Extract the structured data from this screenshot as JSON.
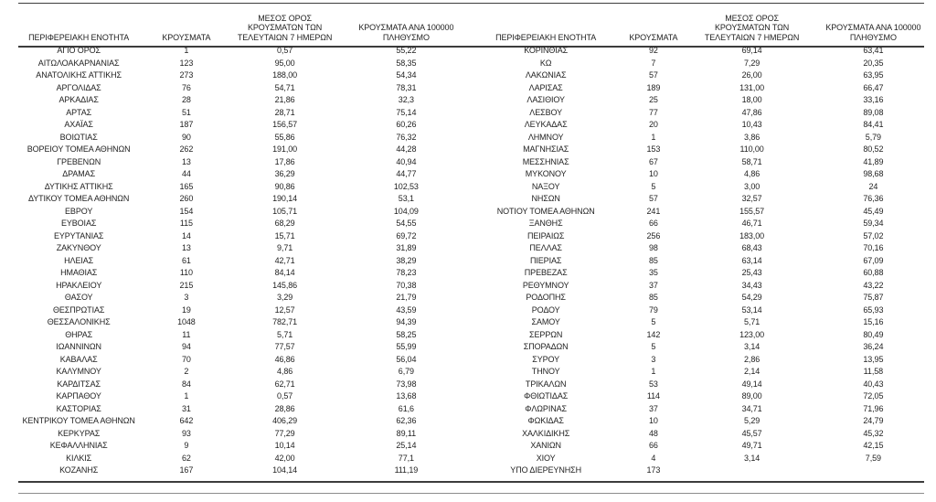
{
  "report": {
    "title": "",
    "colors": {
      "background": "#ffffff",
      "text": "#1f1f1f",
      "rule_dark": "#3c3c3c",
      "rule_light": "#8c8c8c"
    },
    "columns": [
      {
        "id": "region",
        "label": "ΠΕΡΙΦΕΡΕΙΑΚΗ ΕΝΟΤΗΤΑ",
        "lines": [
          "ΠΕΡΙΦΕΡΕΙΑΚΗ ΕΝΟΤΗΤΑ"
        ]
      },
      {
        "id": "cases",
        "label": "ΚΡΟΥΣΜΑΤΑ",
        "lines": [
          "ΚΡΟΥΣΜΑΤΑ"
        ]
      },
      {
        "id": "avg7",
        "label": "ΜΕΣΟΣ ΟΡΟΣ ΚΡΟΥΣΜΑΤΩΝ ΤΩΝ ΤΕΛΕΥΤΑΙΩΝ 7 ΗΜΕΡΩΝ",
        "lines": [
          "ΜΕΣΟΣ ΟΡΟΣ",
          "ΚΡΟΥΣΜΑΤΩΝ ΤΩΝ",
          "ΤΕΛΕΥΤΑΙΩΝ 7 ΗΜΕΡΩΝ"
        ]
      },
      {
        "id": "per100k",
        "label": "ΚΡΟΥΣΜΑΤΑ ΑΝΑ 100000 ΠΛΗΘΥΣΜΟ",
        "lines": [
          "ΚΡΟΥΣΜΑΤΑ ΑΝΑ 100000",
          "ΠΛΗΘΥΣΜΟ"
        ]
      }
    ],
    "left_table": {
      "rows": [
        [
          "ΑΓΙΟ ΟΡΟΣ",
          "1",
          "0,57",
          "55,22"
        ],
        [
          "ΑΙΤΩΛΟΑΚΑΡΝΑΝΙΑΣ",
          "123",
          "95,00",
          "58,35"
        ],
        [
          "ΑΝΑΤΟΛΙΚΗΣ ΑΤΤΙΚΗΣ",
          "273",
          "188,00",
          "54,34"
        ],
        [
          "ΑΡΓΟΛΙΔΑΣ",
          "76",
          "54,71",
          "78,31"
        ],
        [
          "ΑΡΚΑΔΙΑΣ",
          "28",
          "21,86",
          "32,3"
        ],
        [
          "ΑΡΤΑΣ",
          "51",
          "28,71",
          "75,14"
        ],
        [
          "ΑΧΑΪΑΣ",
          "187",
          "156,57",
          "60,26"
        ],
        [
          "ΒΟΙΩΤΙΑΣ",
          "90",
          "55,86",
          "76,32"
        ],
        [
          "ΒΟΡΕΙΟΥ ΤΟΜΕΑ ΑΘΗΝΩΝ",
          "262",
          "191,00",
          "44,28"
        ],
        [
          "ΓΡΕΒΕΝΩΝ",
          "13",
          "17,86",
          "40,94"
        ],
        [
          "ΔΡΑΜΑΣ",
          "44",
          "36,29",
          "44,77"
        ],
        [
          "ΔΥΤΙΚΗΣ ΑΤΤΙΚΗΣ",
          "165",
          "90,86",
          "102,53"
        ],
        [
          "ΔΥΤΙΚΟΥ ΤΟΜΕΑ ΑΘΗΝΩΝ",
          "260",
          "190,14",
          "53,1"
        ],
        [
          "ΕΒΡΟΥ",
          "154",
          "105,71",
          "104,09"
        ],
        [
          "ΕΥΒΟΙΑΣ",
          "115",
          "68,29",
          "54,55"
        ],
        [
          "ΕΥΡΥΤΑΝΙΑΣ",
          "14",
          "15,71",
          "69,72"
        ],
        [
          "ΖΑΚΥΝΘΟΥ",
          "13",
          "9,71",
          "31,89"
        ],
        [
          "ΗΛΕΙΑΣ",
          "61",
          "42,71",
          "38,29"
        ],
        [
          "ΗΜΑΘΙΑΣ",
          "110",
          "84,14",
          "78,23"
        ],
        [
          "ΗΡΑΚΛΕΙΟΥ",
          "215",
          "145,86",
          "70,38"
        ],
        [
          "ΘΑΣΟΥ",
          "3",
          "3,29",
          "21,79"
        ],
        [
          "ΘΕΣΠΡΩΤΙΑΣ",
          "19",
          "12,57",
          "43,59"
        ],
        [
          "ΘΕΣΣΑΛΟΝΙΚΗΣ",
          "1048",
          "782,71",
          "94,39"
        ],
        [
          "ΘΗΡΑΣ",
          "11",
          "5,71",
          "58,25"
        ],
        [
          "ΙΩΑΝΝΙΝΩΝ",
          "94",
          "77,57",
          "55,99"
        ],
        [
          "ΚΑΒΑΛΑΣ",
          "70",
          "46,86",
          "56,04"
        ],
        [
          "ΚΑΛΥΜΝΟΥ",
          "2",
          "4,86",
          "6,79"
        ],
        [
          "ΚΑΡΔΙΤΣΑΣ",
          "84",
          "62,71",
          "73,98"
        ],
        [
          "ΚΑΡΠΑΘΟΥ",
          "1",
          "0,57",
          "13,68"
        ],
        [
          "ΚΑΣΤΟΡΙΑΣ",
          "31",
          "28,86",
          "61,6"
        ],
        [
          "ΚΕΝΤΡΙΚΟΥ ΤΟΜΕΑ ΑΘΗΝΩΝ",
          "642",
          "406,29",
          "62,36"
        ],
        [
          "ΚΕΡΚΥΡΑΣ",
          "93",
          "77,29",
          "89,11"
        ],
        [
          "ΚΕΦΑΛΛΗΝΙΑΣ",
          "9",
          "10,14",
          "25,14"
        ],
        [
          "ΚΙΛΚΙΣ",
          "62",
          "42,00",
          "77,1"
        ],
        [
          "ΚΟΖΑΝΗΣ",
          "167",
          "104,14",
          "111,19"
        ]
      ]
    },
    "right_table": {
      "rows": [
        [
          "ΚΟΡΙΝΘΙΑΣ",
          "92",
          "69,14",
          "63,41"
        ],
        [
          "ΚΩ",
          "7",
          "7,29",
          "20,35"
        ],
        [
          "ΛΑΚΩΝΙΑΣ",
          "57",
          "26,00",
          "63,95"
        ],
        [
          "ΛΑΡΙΣΑΣ",
          "189",
          "131,00",
          "66,47"
        ],
        [
          "ΛΑΣΙΘΙΟΥ",
          "25",
          "18,00",
          "33,16"
        ],
        [
          "ΛΕΣΒΟΥ",
          "77",
          "47,86",
          "89,08"
        ],
        [
          "ΛΕΥΚΑΔΑΣ",
          "20",
          "10,43",
          "84,41"
        ],
        [
          "ΛΗΜΝΟΥ",
          "1",
          "3,86",
          "5,79"
        ],
        [
          "ΜΑΓΝΗΣΙΑΣ",
          "153",
          "110,00",
          "80,52"
        ],
        [
          "ΜΕΣΣΗΝΙΑΣ",
          "67",
          "58,71",
          "41,89"
        ],
        [
          "ΜΥΚΟΝΟΥ",
          "10",
          "4,86",
          "98,68"
        ],
        [
          "ΝΑΞΟΥ",
          "5",
          "3,00",
          "24"
        ],
        [
          "ΝΗΣΩΝ",
          "57",
          "32,57",
          "76,36"
        ],
        [
          "ΝΟΤΙΟΥ ΤΟΜΕΑ ΑΘΗΝΩΝ",
          "241",
          "155,57",
          "45,49"
        ],
        [
          "ΞΑΝΘΗΣ",
          "66",
          "46,71",
          "59,34"
        ],
        [
          "ΠΕΙΡΑΙΩΣ",
          "256",
          "183,00",
          "57,02"
        ],
        [
          "ΠΕΛΛΑΣ",
          "98",
          "68,43",
          "70,16"
        ],
        [
          "ΠΙΕΡΙΑΣ",
          "85",
          "63,14",
          "67,09"
        ],
        [
          "ΠΡΕΒΕΖΑΣ",
          "35",
          "25,43",
          "60,88"
        ],
        [
          "ΡΕΘΥΜΝΟΥ",
          "37",
          "34,43",
          "43,22"
        ],
        [
          "ΡΟΔΟΠΗΣ",
          "85",
          "54,29",
          "75,87"
        ],
        [
          "ΡΟΔΟΥ",
          "79",
          "53,14",
          "65,93"
        ],
        [
          "ΣΑΜΟΥ",
          "5",
          "5,71",
          "15,16"
        ],
        [
          "ΣΕΡΡΩΝ",
          "142",
          "123,00",
          "80,49"
        ],
        [
          "ΣΠΟΡΑΔΩΝ",
          "5",
          "3,14",
          "36,24"
        ],
        [
          "ΣΥΡΟΥ",
          "3",
          "2,86",
          "13,95"
        ],
        [
          "ΤΗΝΟΥ",
          "1",
          "2,14",
          "11,58"
        ],
        [
          "ΤΡΙΚΑΛΩΝ",
          "53",
          "49,14",
          "40,43"
        ],
        [
          "ΦΘΙΩΤΙΔΑΣ",
          "114",
          "89,00",
          "72,05"
        ],
        [
          "ΦΛΩΡΙΝΑΣ",
          "37",
          "34,71",
          "71,96"
        ],
        [
          "ΦΩΚΙΔΑΣ",
          "10",
          "5,29",
          "24,79"
        ],
        [
          "ΧΑΛΚΙΔΙΚΗΣ",
          "48",
          "45,57",
          "45,32"
        ],
        [
          "ΧΑΝΙΩΝ",
          "66",
          "49,71",
          "42,15"
        ],
        [
          "ΧΙΟΥ",
          "4",
          "3,14",
          "7,59"
        ],
        [
          "ΥΠΟ ΔΙΕΡΕΥΝΗΣΗ",
          "173",
          "",
          ""
        ]
      ]
    }
  }
}
